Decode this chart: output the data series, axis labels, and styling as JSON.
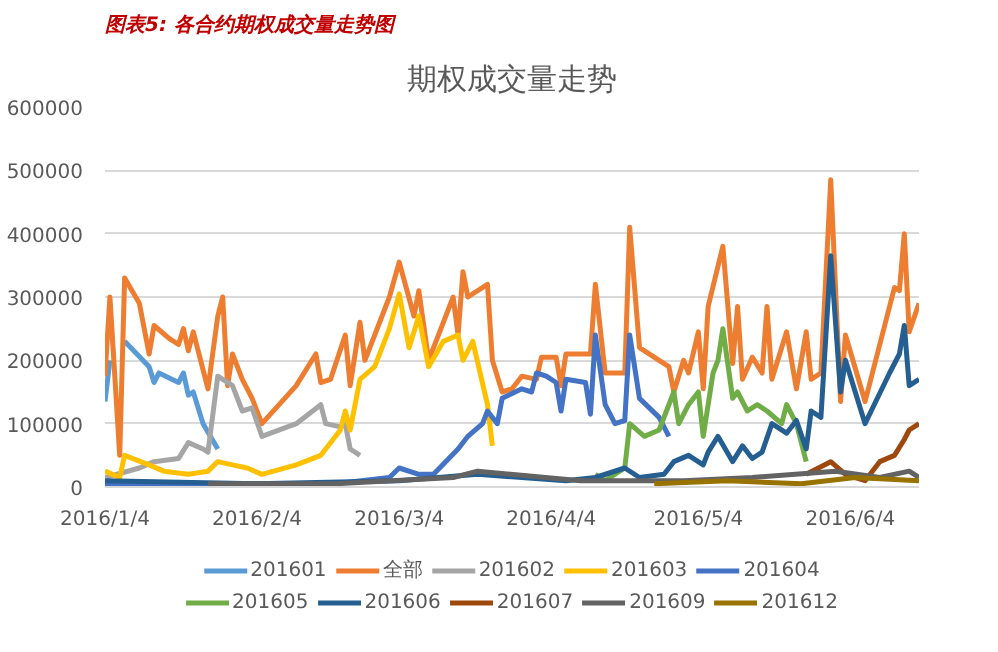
{
  "chart_data": {
    "type": "line",
    "title": "期权成交量走势",
    "subtitle": "图表5: 各合约期权成交量走势图",
    "xlim": [
      "2016-01-04",
      "2016-06-18"
    ],
    "xticks": [
      {
        "value": "2016-01-04",
        "label": "2016/1/4"
      },
      {
        "value": "2016-02-04",
        "label": "2016/2/4"
      },
      {
        "value": "2016-03-04",
        "label": "2016/3/4"
      },
      {
        "value": "2016-04-04",
        "label": "2016/4/4"
      },
      {
        "value": "2016-05-04",
        "label": "2016/5/4"
      },
      {
        "value": "2016-06-04",
        "label": "2016/6/4"
      }
    ],
    "ylim": [
      0,
      600000
    ],
    "yticks": [
      0,
      100000,
      200000,
      300000,
      400000,
      500000,
      600000
    ],
    "grid": "y",
    "legend": "bottom",
    "line_style": "solid",
    "series": [
      {
        "name": "201601",
        "color": "#5b9bd5",
        "x": [
          "2016-01-04",
          "2016-01-05",
          "2016-01-07",
          "2016-01-08",
          "2016-01-13",
          "2016-01-14",
          "2016-01-15",
          "2016-01-19",
          "2016-01-20",
          "2016-01-21",
          "2016-01-22",
          "2016-01-24",
          "2016-01-27"
        ],
        "values": [
          135000,
          200000,
          null,
          230000,
          190000,
          165000,
          180000,
          165000,
          180000,
          145000,
          150000,
          100000,
          60000
        ]
      },
      {
        "name": "全部",
        "color": "#ed7d31",
        "x": [
          "2016-01-04",
          "2016-01-05",
          "2016-01-07",
          "2016-01-08",
          "2016-01-11",
          "2016-01-13",
          "2016-01-14",
          "2016-01-17",
          "2016-01-19",
          "2016-01-20",
          "2016-01-21",
          "2016-01-22",
          "2016-01-25",
          "2016-01-27",
          "2016-01-28",
          "2016-01-29",
          "2016-01-30",
          "2016-02-01",
          "2016-02-03",
          "2016-02-05",
          "2016-02-12",
          "2016-02-16",
          "2016-02-17",
          "2016-02-19",
          "2016-02-22",
          "2016-02-23",
          "2016-02-25",
          "2016-02-26",
          "2016-03-02",
          "2016-03-04",
          "2016-03-07",
          "2016-03-08",
          "2016-03-10",
          "2016-03-13",
          "2016-03-15",
          "2016-03-16",
          "2016-03-17",
          "2016-03-18",
          "2016-03-22",
          "2016-03-23",
          "2016-03-25",
          "2016-03-27",
          "2016-03-29",
          "2016-04-01",
          "2016-04-02",
          "2016-04-05",
          "2016-04-06",
          "2016-04-07",
          "2016-04-12",
          "2016-04-13",
          "2016-04-15",
          "2016-04-19",
          "2016-04-20",
          "2016-04-22",
          "2016-04-26",
          "2016-04-28",
          "2016-04-29",
          "2016-05-01",
          "2016-05-02",
          "2016-05-04",
          "2016-05-05",
          "2016-05-06",
          "2016-05-09",
          "2016-05-11",
          "2016-05-12",
          "2016-05-13",
          "2016-05-15",
          "2016-05-17",
          "2016-05-18",
          "2016-05-19",
          "2016-05-22",
          "2016-05-24",
          "2016-05-26",
          "2016-05-27",
          "2016-05-29",
          "2016-05-31",
          "2016-06-02",
          "2016-06-03",
          "2016-06-07",
          "2016-06-13",
          "2016-06-14",
          "2016-06-15",
          "2016-06-16",
          "2016-06-18"
        ],
        "values": [
          175000,
          300000,
          50000,
          330000,
          290000,
          210000,
          255000,
          235000,
          225000,
          250000,
          215000,
          245000,
          155000,
          270000,
          300000,
          160000,
          210000,
          170000,
          140000,
          100000,
          160000,
          210000,
          165000,
          170000,
          240000,
          160000,
          260000,
          200000,
          300000,
          355000,
          270000,
          310000,
          200000,
          260000,
          300000,
          240000,
          340000,
          300000,
          320000,
          200000,
          150000,
          155000,
          175000,
          170000,
          205000,
          205000,
          160000,
          210000,
          210000,
          320000,
          180000,
          180000,
          410000,
          220000,
          200000,
          190000,
          150000,
          200000,
          180000,
          245000,
          155000,
          285000,
          380000,
          195000,
          285000,
          170000,
          205000,
          180000,
          285000,
          170000,
          245000,
          155000,
          245000,
          170000,
          180000,
          485000,
          135000,
          240000,
          135000,
          315000,
          310000,
          400000,
          245000,
          290000
        ]
      },
      {
        "name": "201602",
        "color": "#a5a5a5",
        "x": [
          "2016-01-04",
          "2016-01-11",
          "2016-01-14",
          "2016-01-19",
          "2016-01-21",
          "2016-01-24",
          "2016-01-25",
          "2016-01-27",
          "2016-01-30",
          "2016-02-01",
          "2016-02-03",
          "2016-02-05",
          "2016-02-12",
          "2016-02-17",
          "2016-02-18",
          "2016-02-21",
          "2016-02-22",
          "2016-02-23",
          "2016-02-25"
        ],
        "values": [
          15000,
          30000,
          40000,
          45000,
          70000,
          60000,
          55000,
          175000,
          160000,
          120000,
          125000,
          80000,
          100000,
          130000,
          100000,
          95000,
          100000,
          60000,
          50000
        ]
      },
      {
        "name": "201603",
        "color": "#ffc000",
        "x": [
          "2016-01-04",
          "2016-01-07",
          "2016-01-08",
          "2016-01-13",
          "2016-01-16",
          "2016-01-21",
          "2016-01-25",
          "2016-01-27",
          "2016-01-30",
          "2016-02-02",
          "2016-02-05",
          "2016-02-12",
          "2016-02-17",
          "2016-02-18",
          "2016-02-21",
          "2016-02-22",
          "2016-02-23",
          "2016-02-25",
          "2016-02-28",
          "2016-03-02",
          "2016-03-04",
          "2016-03-06",
          "2016-03-08",
          "2016-03-10",
          "2016-03-13",
          "2016-03-16",
          "2016-03-17",
          "2016-03-19",
          "2016-03-22",
          "2016-03-23"
        ],
        "values": [
          25000,
          15000,
          50000,
          35000,
          25000,
          20000,
          25000,
          40000,
          35000,
          30000,
          20000,
          35000,
          50000,
          60000,
          90000,
          120000,
          90000,
          170000,
          190000,
          250000,
          305000,
          220000,
          270000,
          190000,
          230000,
          240000,
          200000,
          230000,
          130000,
          65000
        ]
      },
      {
        "name": "201604",
        "color": "#4472c4",
        "x": [
          "2016-01-04",
          "2016-02-20",
          "2016-03-02",
          "2016-03-04",
          "2016-03-08",
          "2016-03-11",
          "2016-03-16",
          "2016-03-18",
          "2016-03-21",
          "2016-03-22",
          "2016-03-24",
          "2016-03-25",
          "2016-03-29",
          "2016-03-31",
          "2016-04-01",
          "2016-04-03",
          "2016-04-05",
          "2016-04-06",
          "2016-04-07",
          "2016-04-11",
          "2016-04-12",
          "2016-04-13",
          "2016-04-15",
          "2016-04-17",
          "2016-04-19",
          "2016-04-20",
          "2016-04-22",
          "2016-04-26",
          "2016-04-28"
        ],
        "values": [
          5000,
          5000,
          15000,
          30000,
          20000,
          20000,
          60000,
          80000,
          100000,
          120000,
          100000,
          140000,
          155000,
          150000,
          180000,
          175000,
          165000,
          120000,
          170000,
          165000,
          115000,
          240000,
          130000,
          100000,
          105000,
          240000,
          140000,
          110000,
          80000
        ]
      },
      {
        "name": "201605",
        "color": "#70ad47",
        "x": [
          "2016-04-13",
          "2016-04-15",
          "2016-04-19",
          "2016-04-20",
          "2016-04-23",
          "2016-04-26",
          "2016-04-29",
          "2016-04-30",
          "2016-05-02",
          "2016-05-04",
          "2016-05-05",
          "2016-05-07",
          "2016-05-08",
          "2016-05-09",
          "2016-05-11",
          "2016-05-12",
          "2016-05-14",
          "2016-05-16",
          "2016-05-18",
          "2016-05-21",
          "2016-05-22",
          "2016-05-24",
          "2016-05-26"
        ],
        "values": [
          20000,
          10000,
          30000,
          100000,
          80000,
          90000,
          150000,
          100000,
          130000,
          150000,
          80000,
          180000,
          200000,
          250000,
          140000,
          150000,
          120000,
          130000,
          120000,
          100000,
          130000,
          100000,
          40000
        ]
      },
      {
        "name": "201606",
        "color": "#255e91",
        "x": [
          "2016-01-04",
          "2016-02-04",
          "2016-03-04",
          "2016-03-20",
          "2016-04-07",
          "2016-04-13",
          "2016-04-19",
          "2016-04-22",
          "2016-04-27",
          "2016-04-29",
          "2016-05-02",
          "2016-05-05",
          "2016-05-06",
          "2016-05-08",
          "2016-05-11",
          "2016-05-13",
          "2016-05-15",
          "2016-05-17",
          "2016-05-19",
          "2016-05-22",
          "2016-05-24",
          "2016-05-26",
          "2016-05-27",
          "2016-05-29",
          "2016-05-31",
          "2016-06-02",
          "2016-06-03",
          "2016-06-07",
          "2016-06-12",
          "2016-06-14",
          "2016-06-15",
          "2016-06-16",
          "2016-06-18"
        ],
        "values": [
          10000,
          5000,
          10000,
          20000,
          10000,
          15000,
          30000,
          15000,
          20000,
          40000,
          50000,
          35000,
          55000,
          80000,
          40000,
          65000,
          45000,
          55000,
          100000,
          85000,
          105000,
          60000,
          120000,
          110000,
          365000,
          150000,
          200000,
          100000,
          180000,
          210000,
          255000,
          160000,
          170000
        ]
      },
      {
        "name": "201607",
        "color": "#9e480e",
        "x": [
          "2016-05-26",
          "2016-05-31",
          "2016-06-03",
          "2016-06-07",
          "2016-06-10",
          "2016-06-13",
          "2016-06-15",
          "2016-06-16",
          "2016-06-18"
        ],
        "values": [
          20000,
          40000,
          20000,
          10000,
          40000,
          50000,
          75000,
          90000,
          100000
        ]
      },
      {
        "name": "201609",
        "color": "#636363",
        "x": [
          "2016-01-25",
          "2016-02-20",
          "2016-03-15",
          "2016-03-20",
          "2016-04-10",
          "2016-05-01",
          "2016-05-15",
          "2016-06-01",
          "2016-06-10",
          "2016-06-16",
          "2016-06-18"
        ],
        "values": [
          5000,
          5000,
          15000,
          25000,
          10000,
          10000,
          15000,
          25000,
          15000,
          25000,
          15000
        ]
      },
      {
        "name": "201612",
        "color": "#997300",
        "x": [
          "2016-04-25",
          "2016-05-10",
          "2016-05-25",
          "2016-06-05",
          "2016-06-18"
        ],
        "values": [
          5000,
          10000,
          5000,
          15000,
          10000
        ]
      }
    ]
  }
}
